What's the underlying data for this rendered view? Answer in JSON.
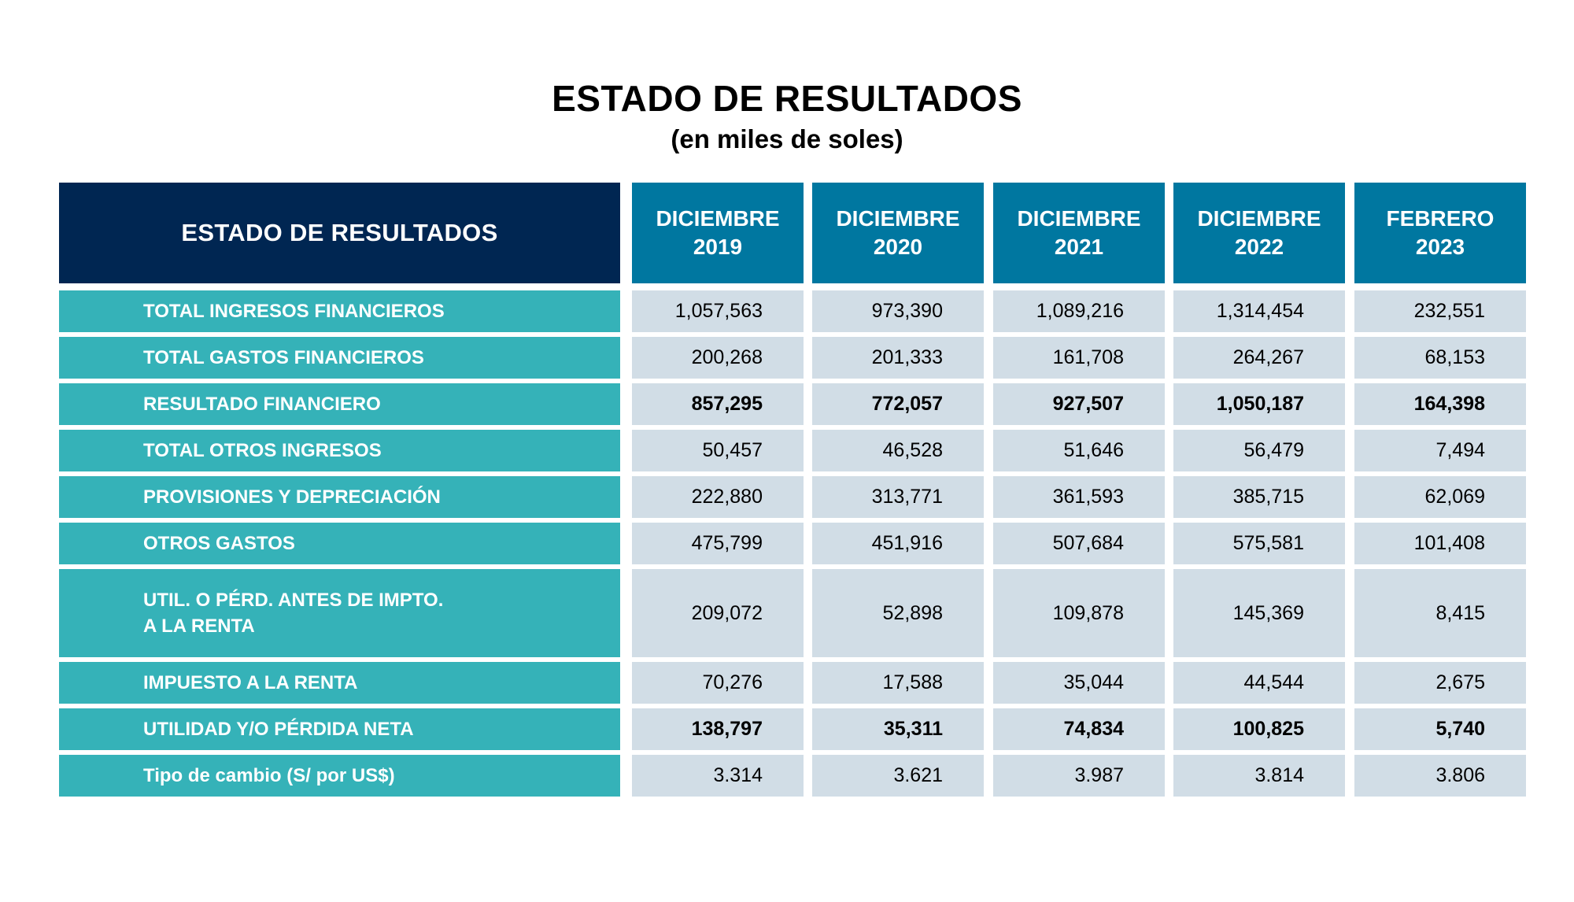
{
  "title": "ESTADO DE RESULTADOS",
  "subtitle": "(en miles de soles)",
  "table": {
    "corner_label": "ESTADO DE RESULTADOS",
    "columns": [
      {
        "line1": "DICIEMBRE",
        "line2": "2019"
      },
      {
        "line1": "DICIEMBRE",
        "line2": "2020"
      },
      {
        "line1": "DICIEMBRE",
        "line2": "2021"
      },
      {
        "line1": "DICIEMBRE",
        "line2": "2022"
      },
      {
        "line1": "FEBRERO",
        "line2": "2023"
      }
    ],
    "rows": [
      {
        "label": "TOTAL INGRESOS FINANCIEROS",
        "values": [
          "1,057,563",
          "973,390",
          "1,089,216",
          "1,314,454",
          "232,551"
        ],
        "bold": false
      },
      {
        "label": "TOTAL GASTOS FINANCIEROS",
        "values": [
          "200,268",
          "201,333",
          "161,708",
          "264,267",
          "68,153"
        ],
        "bold": false
      },
      {
        "label": "RESULTADO FINANCIERO",
        "values": [
          "857,295",
          "772,057",
          "927,507",
          "1,050,187",
          "164,398"
        ],
        "bold": true
      },
      {
        "label": "TOTAL OTROS INGRESOS",
        "values": [
          "50,457",
          "46,528",
          "51,646",
          "56,479",
          "7,494"
        ],
        "bold": false
      },
      {
        "label": "PROVISIONES Y DEPRECIACIÓN",
        "values": [
          "222,880",
          "313,771",
          "361,593",
          "385,715",
          "62,069"
        ],
        "bold": false
      },
      {
        "label": "OTROS GASTOS",
        "values": [
          "475,799",
          "451,916",
          "507,684",
          "575,581",
          "101,408"
        ],
        "bold": false
      },
      {
        "label": "UTIL. O PÉRD. ANTES DE IMPTO.",
        "label2": "A LA RENTA",
        "values": [
          "209,072",
          "52,898",
          "109,878",
          "145,369",
          "8,415"
        ],
        "bold": false
      },
      {
        "label": "IMPUESTO A LA RENTA",
        "values": [
          "70,276",
          "17,588",
          "35,044",
          "44,544",
          "2,675"
        ],
        "bold": false
      },
      {
        "label": "UTILIDAD Y/O PÉRDIDA NETA",
        "values": [
          "138,797",
          "35,311",
          "74,834",
          "100,825",
          "5,740"
        ],
        "bold": true
      },
      {
        "label": "Tipo de cambio (S/ por US$)",
        "values": [
          "3.314",
          "3.621",
          "3.987",
          "3.814",
          "3.806"
        ],
        "bold": false
      }
    ]
  },
  "colors": {
    "header_dark": "#002652",
    "header_blue": "#0077a0",
    "row_label_teal": "#35b2b8",
    "value_cell": "#d1dde6"
  }
}
